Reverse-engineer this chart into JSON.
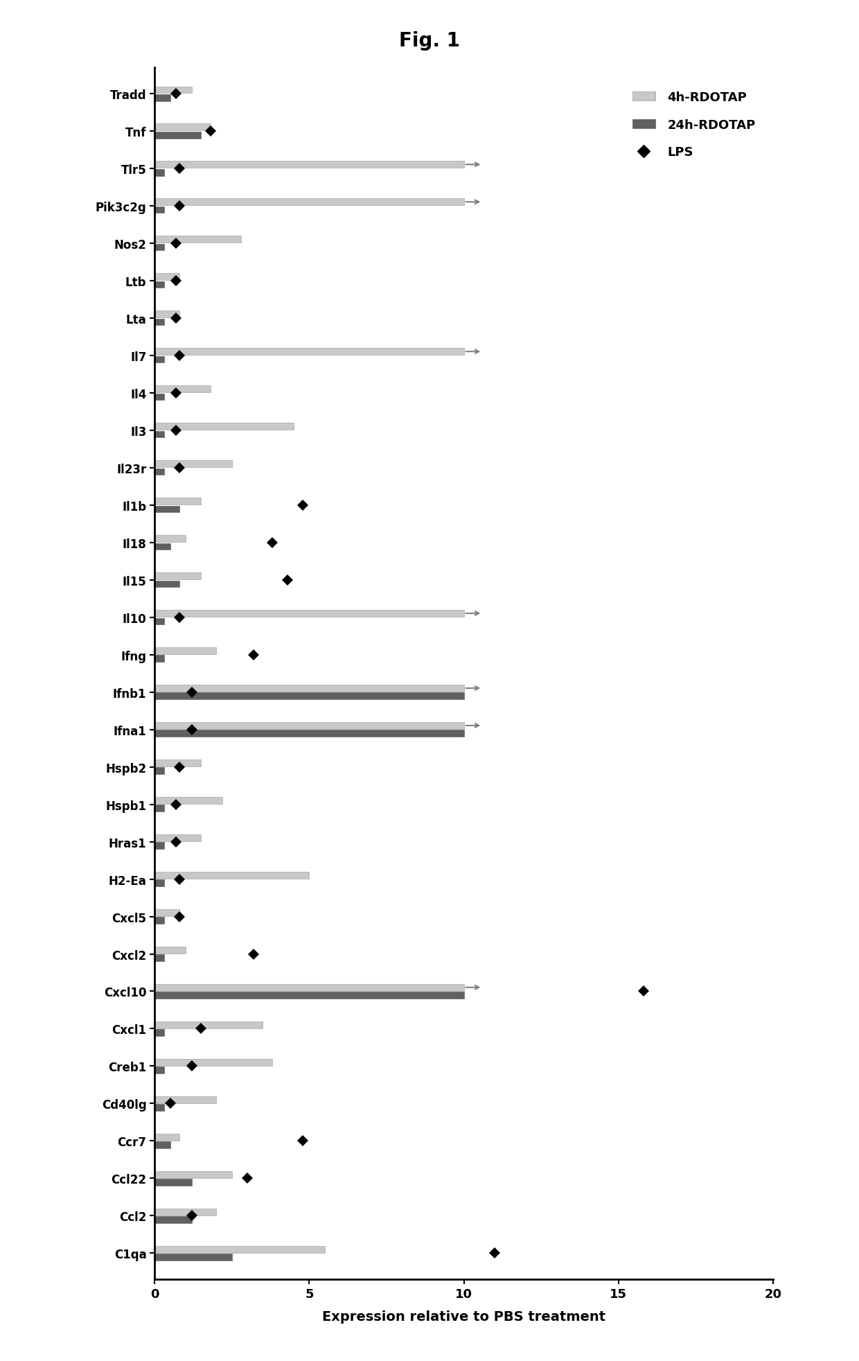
{
  "title": "Fig. 1",
  "xlabel": "Expression relative to PBS treatment",
  "genes": [
    "C1qa",
    "Ccl2",
    "Ccl22",
    "Ccr7",
    "Cd40lg",
    "Creb1",
    "Cxcl1",
    "Cxcl10",
    "Cxcl2",
    "Cxcl5",
    "H2-Ea",
    "Hras1",
    "Hspb1",
    "Hspb2",
    "Ifna1",
    "Ifnb1",
    "Ifng",
    "Il10",
    "Il15",
    "Il18",
    "Il1b",
    "Il23r",
    "Il3",
    "Il4",
    "Il7",
    "Lta",
    "Ltb",
    "Nos2",
    "Pik3c2g",
    "Tlr5",
    "Tnf",
    "Tradd"
  ],
  "gene_data": {
    "Tradd": [
      1.2,
      0.5,
      0.7
    ],
    "Tnf": [
      1.8,
      1.5,
      1.8
    ],
    "Tlr5": [
      10.0,
      0.3,
      0.8
    ],
    "Pik3c2g": [
      10.0,
      0.3,
      0.8
    ],
    "Nos2": [
      2.8,
      0.3,
      0.7
    ],
    "Ltb": [
      0.8,
      0.3,
      0.7
    ],
    "Lta": [
      0.8,
      0.3,
      0.7
    ],
    "Il7": [
      10.0,
      0.3,
      0.8
    ],
    "Il4": [
      1.8,
      0.3,
      0.7
    ],
    "Il3": [
      4.5,
      0.3,
      0.7
    ],
    "Il23r": [
      2.5,
      0.3,
      0.8
    ],
    "Il1b": [
      1.5,
      0.8,
      4.8
    ],
    "Il18": [
      1.0,
      0.5,
      3.8
    ],
    "Il15": [
      1.5,
      0.8,
      4.3
    ],
    "Il10": [
      10.0,
      0.3,
      0.8
    ],
    "Ifng": [
      2.0,
      0.3,
      3.2
    ],
    "Ifnb1": [
      10.0,
      10.0,
      1.2
    ],
    "Ifna1": [
      10.0,
      10.0,
      1.2
    ],
    "Hspb2": [
      1.5,
      0.3,
      0.8
    ],
    "Hspb1": [
      2.2,
      0.3,
      0.7
    ],
    "Hras1": [
      1.5,
      0.3,
      0.7
    ],
    "H2-Ea": [
      5.0,
      0.3,
      0.8
    ],
    "Cxcl5": [
      0.8,
      0.3,
      0.8
    ],
    "Cxcl2": [
      1.0,
      0.3,
      3.2
    ],
    "Cxcl10": [
      10.0,
      10.0,
      15.8
    ],
    "Cxcl1": [
      3.5,
      0.3,
      1.5
    ],
    "Creb1": [
      3.8,
      0.3,
      1.2
    ],
    "Cd40lg": [
      2.0,
      0.3,
      0.5
    ],
    "Ccr7": [
      0.8,
      0.5,
      4.8
    ],
    "Ccl22": [
      2.5,
      1.2,
      3.0
    ],
    "Ccl2": [
      2.0,
      1.2,
      1.2
    ],
    "C1qa": [
      5.5,
      2.5,
      11.0
    ]
  },
  "arrows_4h": [
    "Cxcl10",
    "Ifnb1",
    "Ifna1",
    "Il10",
    "Il7",
    "Pik3c2g",
    "Tlr5"
  ],
  "xlim": [
    0,
    20
  ],
  "xticks": [
    0,
    5,
    10,
    15,
    20
  ],
  "bar4h_color": "#c8c8c8",
  "bar24h_color": "#606060",
  "lps_color": "#000000",
  "figsize": [
    12.4,
    19.65
  ]
}
